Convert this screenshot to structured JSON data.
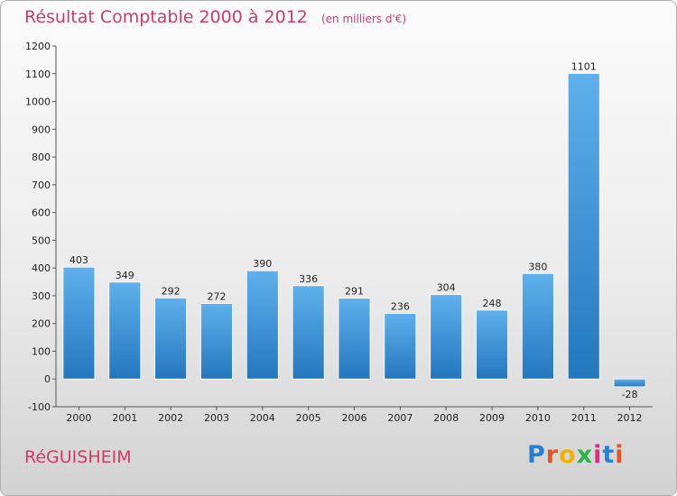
{
  "header": {
    "title": "Résultat Comptable 2000 à 2012",
    "subtitle": "(en milliers d'€)"
  },
  "footer": {
    "commune": "RéGUISHEIM",
    "logo_letters": [
      "P",
      "r",
      "o",
      "x",
      "i",
      "t",
      "i"
    ],
    "logo_colors": [
      "#2a7fd4",
      "#e8541f",
      "#f0b400",
      "#2db34a",
      "#e02a8a",
      "#2a7fd4",
      "#e8541f"
    ]
  },
  "colors": {
    "bar_top": "#5fb0ec",
    "bar_bottom": "#2377bd",
    "title": "#d23a6a"
  },
  "chart_data": {
    "type": "bar",
    "title": "Résultat Comptable 2000 à 2012",
    "subtitle": "(en milliers d'€)",
    "categories": [
      "2000",
      "2001",
      "2002",
      "2003",
      "2004",
      "2005",
      "2006",
      "2007",
      "2008",
      "2009",
      "2010",
      "2011",
      "2012"
    ],
    "values": [
      403,
      349,
      292,
      272,
      390,
      336,
      291,
      236,
      304,
      248,
      380,
      1101,
      -28
    ],
    "ylim": [
      -100,
      1200
    ],
    "yticks": [
      -100,
      0,
      100,
      200,
      300,
      400,
      500,
      600,
      700,
      800,
      900,
      1000,
      1100,
      1200
    ],
    "xlabel": "",
    "ylabel": "",
    "grid": false,
    "legend": "none"
  }
}
